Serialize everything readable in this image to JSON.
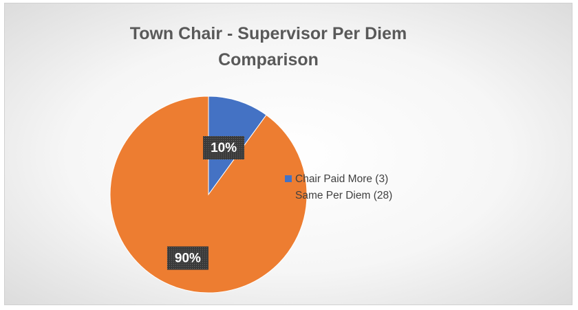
{
  "chart_data": {
    "type": "pie",
    "title": "Town Chair - Supervisor Per Diem Comparison",
    "categories": [
      "Chair Paid More (3)",
      "Same Per Diem (28)"
    ],
    "values": [
      10,
      90
    ],
    "value_labels": [
      "10%",
      "90%"
    ],
    "colors": [
      "#4472c4",
      "#ed7d31"
    ],
    "legend": "right"
  }
}
